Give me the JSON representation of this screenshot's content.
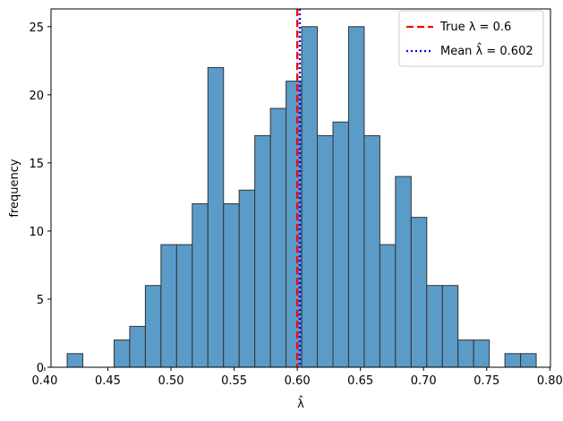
{
  "chart_data": {
    "type": "bar",
    "subtype": "histogram",
    "xlabel": "λ̂",
    "ylabel": "frequency",
    "xlim": [
      0.405,
      0.8005
    ],
    "ylim": [
      0,
      26.3
    ],
    "xticks": [
      0.4,
      0.45,
      0.5,
      0.55,
      0.6,
      0.65,
      0.7,
      0.75,
      0.8
    ],
    "xtick_labels": [
      "0.40",
      "0.45",
      "0.50",
      "0.55",
      "0.60",
      "0.65",
      "0.70",
      "0.75",
      "0.80"
    ],
    "yticks": [
      0,
      5,
      10,
      15,
      20,
      25
    ],
    "ytick_labels": [
      "0",
      "5",
      "10",
      "15",
      "20",
      "25"
    ],
    "bin_start": 0.4178,
    "bin_width": 0.01238,
    "counts": [
      1,
      0,
      0,
      2,
      3,
      6,
      9,
      9,
      12,
      22,
      12,
      13,
      17,
      19,
      21,
      25,
      17,
      18,
      25,
      17,
      9,
      14,
      11,
      6,
      6,
      2,
      2,
      0,
      1,
      1
    ],
    "bar_color": "#5b9bc8",
    "bar_edge_color": "#333333",
    "reference_lines": [
      {
        "name": "true",
        "x": 0.6,
        "color": "#ff0000",
        "style": "dashed"
      },
      {
        "name": "mean",
        "x": 0.602,
        "color": "#0000ff",
        "style": "dotted"
      }
    ],
    "legend": {
      "position": "top-right",
      "entries": [
        {
          "label": "True λ = 0.6",
          "color": "#ff0000",
          "style": "dashed"
        },
        {
          "label": "Mean λ̂ = 0.602",
          "color": "#0000ff",
          "style": "dotted"
        }
      ]
    }
  }
}
